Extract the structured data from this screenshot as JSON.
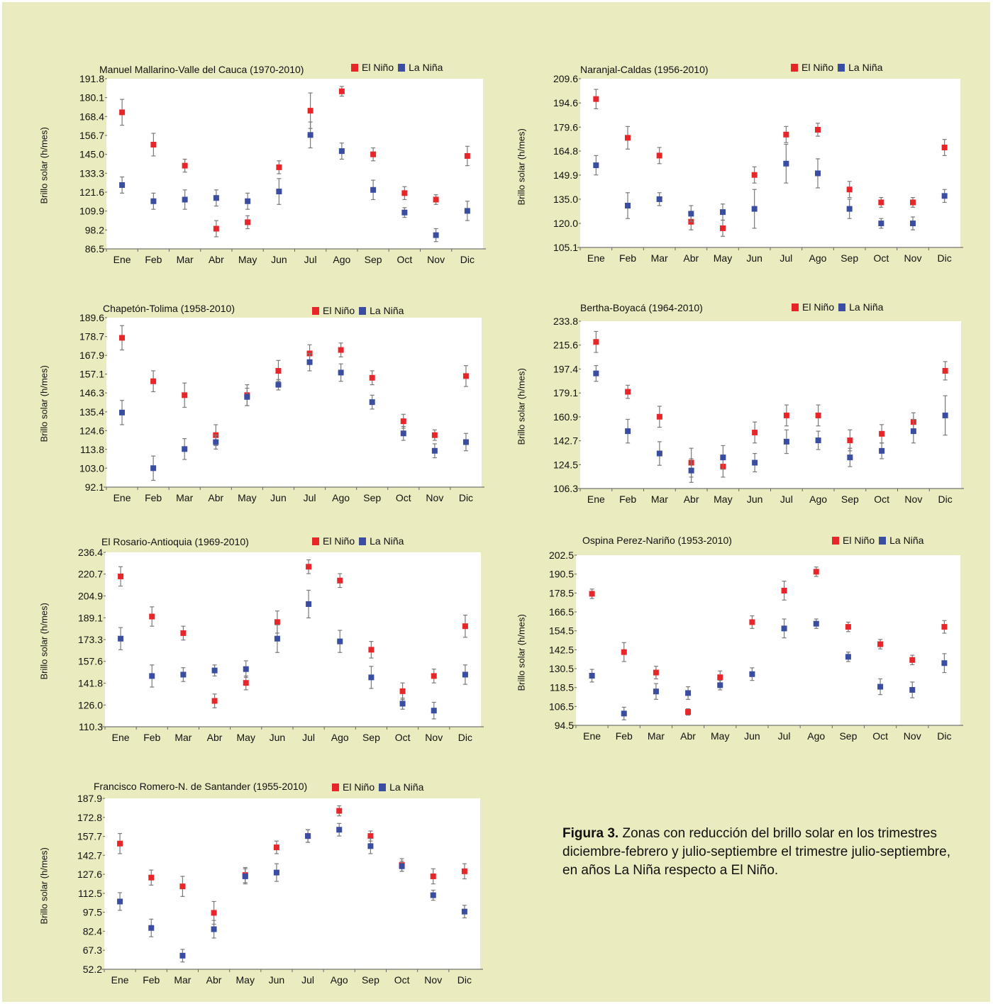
{
  "caption": {
    "label": "Figura 3.",
    "text": "Zonas con reducción del brillo solar en los trimestres diciembre-febrero y julio-septiembre el trimestre julio-septiembre, en años La Niña respecto a El Niño."
  },
  "colors": {
    "el_nino": "#e8262a",
    "la_nina": "#3a4da0",
    "error_bar": "#7a7a7a",
    "page_bg": "#eaebbf",
    "plot_bg": "#ffffff"
  },
  "legend": {
    "el_nino": "El Niño",
    "la_nina": "La Niña"
  },
  "chart_data": [
    {
      "type": "scatter",
      "title": "Manuel Mallarino-Valle del Cauca (1970-2010)",
      "ylabel": "Brillo solar (h/mes)",
      "categories": [
        "Ene",
        "Feb",
        "Mar",
        "Abr",
        "May",
        "Jun",
        "Jul",
        "Ago",
        "Sep",
        "Oct",
        "Nov",
        "Dic"
      ],
      "yticks": [
        "191.8",
        "180.1",
        "168.4",
        "156.7",
        "145.0",
        "133.3",
        "121.6",
        "109.9",
        "98.2",
        "86.5"
      ],
      "ylim": [
        86.5,
        191.8
      ],
      "series": [
        {
          "name": "El Niño",
          "values": [
            171,
            151,
            138,
            99,
            103,
            137,
            172,
            184,
            145,
            121,
            117,
            144
          ],
          "errors": [
            8,
            7,
            4,
            5,
            4,
            4,
            11,
            3,
            4,
            4,
            3,
            6
          ]
        },
        {
          "name": "La Niña",
          "values": [
            126,
            116,
            117,
            118,
            116,
            122,
            157,
            147,
            123,
            109,
            95,
            110
          ],
          "errors": [
            5,
            5,
            6,
            5,
            5,
            8,
            8,
            5,
            6,
            3,
            4,
            6
          ]
        }
      ]
    },
    {
      "type": "scatter",
      "title": "Naranjal-Caldas (1956-2010)",
      "ylabel": "Brillo solar (h/mes)",
      "categories": [
        "Ene",
        "Feb",
        "Mar",
        "Abr",
        "May",
        "Jun",
        "Jul",
        "Ago",
        "Sep",
        "Oct",
        "Nov",
        "Dic"
      ],
      "yticks": [
        "209.6",
        "194.6",
        "179.6",
        "164.8",
        "149.9",
        "135.0",
        "120.0",
        "105.1"
      ],
      "ylim": [
        105.1,
        209.6
      ],
      "series": [
        {
          "name": "El Niño",
          "values": [
            197,
            173,
            162,
            121,
            117,
            150,
            175,
            178,
            141,
            133,
            133,
            167
          ],
          "errors": [
            6,
            7,
            5,
            5,
            5,
            5,
            5,
            4,
            5,
            3,
            3,
            5
          ]
        },
        {
          "name": "La Niña",
          "values": [
            156,
            131,
            135,
            126,
            127,
            129,
            157,
            151,
            129,
            120,
            120,
            137
          ],
          "errors": [
            6,
            8,
            4,
            5,
            5,
            12,
            12,
            9,
            6,
            3,
            4,
            4
          ]
        }
      ]
    },
    {
      "type": "scatter",
      "title": "Chapetón-Tolima (1958-2010)",
      "ylabel": "Brillo solar (h/mes)",
      "categories": [
        "Ene",
        "Feb",
        "Mar",
        "Abr",
        "May",
        "Jun",
        "Jul",
        "Ago",
        "Sep",
        "Oct",
        "Nov",
        "Dic"
      ],
      "yticks": [
        "189.6",
        "178.7",
        "167.9",
        "157.1",
        "146.3",
        "135.4",
        "124.6",
        "113.8",
        "103.0",
        "92.1"
      ],
      "ylim": [
        92.1,
        189.6
      ],
      "series": [
        {
          "name": "El Niño",
          "values": [
            178,
            153,
            145,
            122,
            145,
            159,
            169,
            171,
            155,
            130,
            122,
            156
          ],
          "errors": [
            7,
            6,
            7,
            6,
            6,
            6,
            5,
            4,
            4,
            4,
            3,
            6
          ]
        },
        {
          "name": "La Niña",
          "values": [
            135,
            103,
            114,
            118,
            144,
            151,
            164,
            158,
            141,
            123,
            113,
            118
          ],
          "errors": [
            7,
            7,
            6,
            4,
            5,
            3,
            5,
            5,
            4,
            4,
            4,
            5
          ]
        }
      ]
    },
    {
      "type": "scatter",
      "title": "Bertha-Boyacá (1964-2010)",
      "ylabel": "Brillo solar (h/mes)",
      "categories": [
        "Ene",
        "Feb",
        "Mar",
        "Abr",
        "May",
        "Jun",
        "Jul",
        "Ago",
        "Sep",
        "Oct",
        "Nov",
        "Dic"
      ],
      "yticks": [
        "233.8",
        "215.6",
        "197.4",
        "179.1",
        "160.9",
        "142.7",
        "124.5",
        "106.3"
      ],
      "ylim": [
        106.3,
        233.8
      ],
      "series": [
        {
          "name": "El Niño",
          "values": [
            218,
            180,
            161,
            126,
            123,
            149,
            162,
            162,
            143,
            148,
            157,
            196
          ],
          "errors": [
            8,
            5,
            8,
            11,
            8,
            8,
            8,
            8,
            8,
            7,
            7,
            7
          ]
        },
        {
          "name": "La Niña",
          "values": [
            194,
            150,
            133,
            120,
            130,
            126,
            142,
            143,
            130,
            135,
            150,
            162
          ],
          "errors": [
            6,
            9,
            9,
            9,
            9,
            7,
            9,
            7,
            7,
            6,
            9,
            15
          ]
        }
      ]
    },
    {
      "type": "scatter",
      "title": "El Rosario-Antioquia (1969-2010)",
      "ylabel": "Brillo solar (h/mes)",
      "categories": [
        "Ene",
        "Feb",
        "Mar",
        "Abr",
        "May",
        "Jun",
        "Jul",
        "Ago",
        "Sep",
        "Oct",
        "Nov",
        "Dic"
      ],
      "yticks": [
        "236.4",
        "220.7",
        "204.9",
        "189.1",
        "173.3",
        "157.6",
        "141.8",
        "126.0",
        "110.3"
      ],
      "ylim": [
        110.3,
        236.4
      ],
      "series": [
        {
          "name": "El Niño",
          "values": [
            219,
            190,
            178,
            129,
            142,
            186,
            226,
            216,
            166,
            136,
            147,
            183
          ],
          "errors": [
            7,
            7,
            5,
            5,
            5,
            8,
            5,
            5,
            6,
            6,
            5,
            8
          ]
        },
        {
          "name": "La Niña",
          "values": [
            174,
            147,
            148,
            151,
            152,
            174,
            199,
            172,
            146,
            127,
            122,
            148
          ],
          "errors": [
            8,
            8,
            5,
            4,
            6,
            10,
            10,
            8,
            8,
            4,
            6,
            7
          ]
        }
      ]
    },
    {
      "type": "scatter",
      "title": "Ospina Perez-Nariño (1953-2010)",
      "ylabel": "Brillo solar (h/mes)",
      "categories": [
        "Ene",
        "Feb",
        "Mar",
        "Abr",
        "May",
        "Jun",
        "Jul",
        "Ago",
        "Sep",
        "Oct",
        "Nov",
        "Dic"
      ],
      "yticks": [
        "202.5",
        "190.5",
        "178.5",
        "166.5",
        "154.5",
        "142.5",
        "130.5",
        "118.5",
        "106.5",
        "94.5"
      ],
      "ylim": [
        94.5,
        202.5
      ],
      "series": [
        {
          "name": "El Niño",
          "values": [
            178,
            141,
            128,
            103,
            125,
            160,
            180,
            192,
            157,
            146,
            136,
            157
          ],
          "errors": [
            3,
            6,
            4,
            2,
            4,
            4,
            6,
            3,
            3,
            3,
            3,
            4
          ]
        },
        {
          "name": "La Niña",
          "values": [
            126,
            102,
            116,
            115,
            120,
            127,
            156,
            159,
            138,
            119,
            117,
            134
          ],
          "errors": [
            4,
            4,
            5,
            4,
            3,
            4,
            6,
            3,
            3,
            5,
            5,
            6
          ]
        }
      ]
    },
    {
      "type": "scatter",
      "title": "Francisco Romero-N. de Santander (1955-2010)",
      "ylabel": "Brillo solar (h/mes)",
      "categories": [
        "Ene",
        "Feb",
        "Mar",
        "Abr",
        "May",
        "Jun",
        "Jul",
        "Ago",
        "Sep",
        "Oct",
        "Nov",
        "Dic"
      ],
      "yticks": [
        "187.9",
        "172.8",
        "157.7",
        "142.7",
        "127.6",
        "112.5",
        "97.5",
        "82.4",
        "67.3",
        "52.2"
      ],
      "ylim": [
        52.2,
        187.9
      ],
      "series": [
        {
          "name": "El Niño",
          "values": [
            152,
            125,
            118,
            97,
            127,
            149,
            158,
            178,
            158,
            135,
            126,
            130
          ],
          "errors": [
            8,
            6,
            8,
            9,
            6,
            5,
            5,
            4,
            4,
            5,
            6,
            6
          ]
        },
        {
          "name": "La Niña",
          "values": [
            106,
            85,
            63,
            84,
            126,
            129,
            158,
            163,
            150,
            134,
            111,
            98
          ],
          "errors": [
            7,
            7,
            5,
            7,
            6,
            7,
            5,
            5,
            6,
            4,
            4,
            5
          ]
        }
      ]
    }
  ]
}
